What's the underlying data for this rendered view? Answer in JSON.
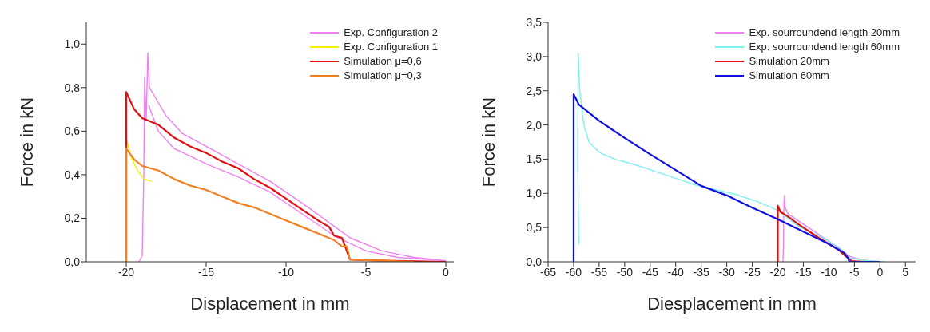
{
  "chart_data": [
    {
      "type": "line",
      "xlabel": "Displacement in mm",
      "ylabel": "Force in kN",
      "xlim": [
        -22.5,
        0.5
      ],
      "ylim": [
        0,
        1.1
      ],
      "xticks": [
        -20,
        -15,
        -10,
        -5,
        0
      ],
      "yticks": [
        {
          "value": 0,
          "label": "0,0"
        },
        {
          "value": 0.2,
          "label": "0,2"
        },
        {
          "value": 0.4,
          "label": "0,4"
        },
        {
          "value": 0.6,
          "label": "0,6"
        },
        {
          "value": 0.8,
          "label": "0,8"
        },
        {
          "value": 1,
          "label": "1,0"
        }
      ],
      "legend": "top right",
      "series": [
        {
          "name": "Exp. Configuration 2",
          "color": "#f080f0",
          "x": [
            -19.2,
            -19.0,
            -18.9,
            -18.85,
            -18.75,
            -18.65,
            -18.55,
            -18.3,
            -17.5,
            -16.5,
            -15,
            -13,
            -11,
            -9,
            -7.5,
            -6,
            -4,
            -2,
            0,
            -3,
            -5,
            -7,
            -9,
            -11,
            -13,
            -15,
            -17,
            -18,
            -18.6
          ],
          "values": [
            0,
            0.03,
            0.4,
            0.85,
            0.65,
            0.96,
            0.8,
            0.77,
            0.67,
            0.59,
            0.53,
            0.45,
            0.37,
            0.27,
            0.19,
            0.11,
            0.05,
            0.02,
            0.005,
            0.02,
            0.05,
            0.12,
            0.22,
            0.32,
            0.39,
            0.45,
            0.52,
            0.6,
            0.72
          ]
        },
        {
          "name": "Exp. Configuration 1",
          "color": "#f5f000",
          "x": [
            -20,
            -20,
            -19.7,
            -19.3,
            -18.9,
            -18.4
          ],
          "values": [
            0.45,
            0.57,
            0.48,
            0.42,
            0.38,
            0.37
          ]
        },
        {
          "name": "Simulation μ=0,6",
          "color": "#e01010",
          "x": [
            -20,
            -20,
            -19.5,
            -19,
            -18,
            -17,
            -16,
            -15,
            -14,
            -13,
            -12,
            -11,
            -10,
            -9,
            -8,
            -7.3,
            -7,
            -6.5,
            -6.2,
            -6,
            -4,
            0
          ],
          "values": [
            0,
            0.78,
            0.7,
            0.66,
            0.63,
            0.57,
            0.53,
            0.5,
            0.46,
            0.43,
            0.38,
            0.34,
            0.29,
            0.24,
            0.19,
            0.16,
            0.12,
            0.11,
            0.05,
            0.01,
            0.005,
            0
          ]
        },
        {
          "name": "Simulation μ=0,3",
          "color": "#f08020",
          "x": [
            -20,
            -20,
            -19.5,
            -19,
            -18,
            -17,
            -16,
            -15,
            -14,
            -13,
            -12,
            -11,
            -10,
            -9,
            -8,
            -7,
            -6.5,
            -6.2,
            -6,
            -4,
            -2
          ],
          "values": [
            0,
            0.52,
            0.47,
            0.44,
            0.42,
            0.38,
            0.35,
            0.33,
            0.3,
            0.27,
            0.25,
            0.22,
            0.19,
            0.16,
            0.13,
            0.1,
            0.07,
            0.07,
            0.01,
            0.005,
            0
          ]
        }
      ]
    },
    {
      "type": "line",
      "xlabel": "Diesplacement in mm",
      "ylabel": "Force in kN",
      "xlim": [
        -65,
        7
      ],
      "ylim": [
        0,
        3.5
      ],
      "xticks": [
        -65,
        -60,
        -55,
        -50,
        -45,
        -40,
        -35,
        -30,
        -25,
        -20,
        -15,
        -10,
        -5,
        0,
        5
      ],
      "yticks": [
        {
          "value": 0,
          "label": "0,0"
        },
        {
          "value": 0.5,
          "label": "0,5"
        },
        {
          "value": 1,
          "label": "1,0"
        },
        {
          "value": 1.5,
          "label": "1,5"
        },
        {
          "value": 2,
          "label": "2,0"
        },
        {
          "value": 2.5,
          "label": "2,5"
        },
        {
          "value": 3,
          "label": "3,0"
        },
        {
          "value": 3.5,
          "label": "3,5"
        }
      ],
      "legend": "top right",
      "series": [
        {
          "name": "Exp. sourroundend length 20mm",
          "color": "#f080f0",
          "x": [
            -19,
            -18.9,
            -18.8,
            -18.7,
            -18.6,
            -18,
            -16,
            -14,
            -12,
            -10,
            -8,
            -6,
            -4,
            -2,
            0
          ],
          "values": [
            0,
            0.2,
            0.85,
            0.97,
            0.8,
            0.7,
            0.6,
            0.5,
            0.4,
            0.3,
            0.2,
            0.08,
            0.04,
            0.01,
            0
          ]
        },
        {
          "name": "Exp. sourroundend length 60mm",
          "color": "#80f0f0",
          "x": [
            -59,
            -59.2,
            -59.1,
            -58.8,
            -58,
            -57,
            -55,
            -52,
            -48,
            -44,
            -40,
            -36,
            -32,
            -28,
            -24,
            -20,
            -16,
            -12,
            -8,
            -6,
            -3,
            1
          ],
          "values": [
            0.25,
            1.5,
            3.05,
            2.5,
            2.0,
            1.75,
            1.6,
            1.5,
            1.42,
            1.32,
            1.22,
            1.12,
            1.05,
            0.98,
            0.88,
            0.75,
            0.52,
            0.38,
            0.21,
            0.06,
            0.02,
            0
          ]
        },
        {
          "name": "Simulation 20mm",
          "color": "#e01010",
          "x": [
            -20,
            -20,
            -19.5,
            -18,
            -16,
            -14,
            -12,
            -10,
            -8,
            -7,
            -6,
            -5.5,
            -3,
            0
          ],
          "values": [
            0,
            0.82,
            0.73,
            0.66,
            0.55,
            0.45,
            0.35,
            0.26,
            0.17,
            0.1,
            0.04,
            0.01,
            0,
            0
          ]
        },
        {
          "name": "Simulation 60mm",
          "color": "#1010e0",
          "x": [
            -60,
            -60,
            -59,
            -57,
            -55,
            -50,
            -45,
            -40,
            -35,
            -30,
            -25,
            -20,
            -15,
            -10,
            -7,
            -6.2,
            -6,
            0
          ],
          "values": [
            0,
            2.45,
            2.3,
            2.18,
            2.06,
            1.81,
            1.57,
            1.34,
            1.11,
            0.97,
            0.79,
            0.62,
            0.44,
            0.26,
            0.13,
            0.05,
            0,
            0
          ]
        }
      ]
    }
  ]
}
